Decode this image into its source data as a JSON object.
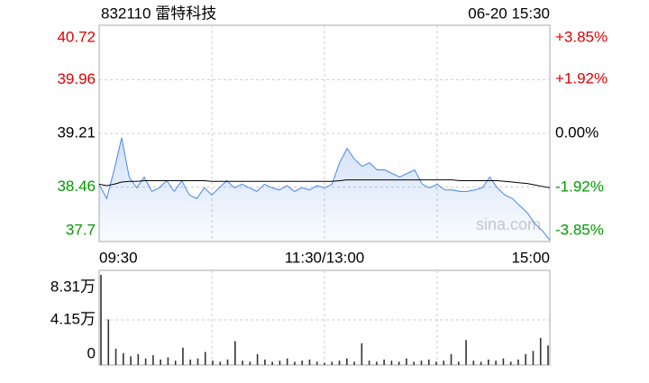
{
  "header": {
    "code_name": "832110 雷特科技",
    "datetime": "06-20 15:30"
  },
  "watermark": "sina.com",
  "chart_data": [
    {
      "type": "line",
      "up_color": "#e00000",
      "down_color": "#009900",
      "flat_color": "#000000",
      "grid": true,
      "categories": [
        "09:30",
        null,
        null,
        null,
        null,
        null,
        null,
        null,
        null,
        null,
        null,
        null,
        null,
        null,
        null,
        null,
        null,
        null,
        null,
        null,
        null,
        null,
        null,
        null,
        null,
        null,
        null,
        null,
        null,
        null,
        "11:30/13:00",
        null,
        null,
        null,
        null,
        null,
        null,
        null,
        null,
        null,
        null,
        null,
        null,
        null,
        null,
        null,
        null,
        null,
        null,
        null,
        null,
        null,
        null,
        null,
        null,
        null,
        null,
        null,
        null,
        null,
        "15:00"
      ],
      "series": [
        {
          "color": "#4a86e8",
          "fill": true,
          "values": [
            38.5,
            38.3,
            38.7,
            39.15,
            38.6,
            38.45,
            38.6,
            38.4,
            38.45,
            38.55,
            38.4,
            38.55,
            38.35,
            38.3,
            38.45,
            38.35,
            38.45,
            38.55,
            38.45,
            38.5,
            38.45,
            38.4,
            38.5,
            38.45,
            38.42,
            38.48,
            38.4,
            38.45,
            38.42,
            38.48,
            38.45,
            38.5,
            38.8,
            39.0,
            38.85,
            38.75,
            38.8,
            38.7,
            38.7,
            38.65,
            38.6,
            38.65,
            38.7,
            38.5,
            38.45,
            38.5,
            38.42,
            38.42,
            38.4,
            38.4,
            38.42,
            38.45,
            38.6,
            38.45,
            38.35,
            38.3,
            38.2,
            38.1,
            37.95,
            37.85,
            37.72
          ]
        },
        {
          "color": "#000000",
          "fill": false,
          "values": [
            38.5,
            38.48,
            38.5,
            38.53,
            38.54,
            38.54,
            38.55,
            38.55,
            38.55,
            38.55,
            38.55,
            38.55,
            38.55,
            38.55,
            38.55,
            38.54,
            38.54,
            38.54,
            38.54,
            38.54,
            38.54,
            38.54,
            38.54,
            38.54,
            38.54,
            38.54,
            38.54,
            38.54,
            38.54,
            38.54,
            38.54,
            38.54,
            38.55,
            38.56,
            38.56,
            38.56,
            38.56,
            38.56,
            38.56,
            38.56,
            38.56,
            38.56,
            38.56,
            38.56,
            38.56,
            38.56,
            38.56,
            38.56,
            38.55,
            38.55,
            38.55,
            38.55,
            38.55,
            38.55,
            38.54,
            38.53,
            38.52,
            38.51,
            38.49,
            38.47,
            38.45
          ]
        }
      ],
      "ylim": [
        37.7,
        40.72
      ],
      "yticks": [
        40.72,
        39.96,
        39.21,
        38.46,
        37.7
      ],
      "y2lim": [
        -3.85,
        3.85
      ],
      "y2ticks": [
        {
          "value": 3.85,
          "label": "+3.85%"
        },
        {
          "value": 1.92,
          "label": "+1.92%"
        },
        {
          "value": 0,
          "label": "0.00%"
        },
        {
          "value": -1.92,
          "label": "-1.92%"
        },
        {
          "value": -3.85,
          "label": "-3.85%"
        }
      ]
    },
    {
      "type": "bar",
      "color": "#333333",
      "values": [
        8.31,
        4.2,
        1.5,
        1.1,
        0.8,
        1.0,
        0.6,
        0.9,
        0.5,
        0.7,
        0.4,
        1.6,
        0.5,
        0.6,
        1.2,
        0.4,
        0.3,
        0.5,
        2.2,
        0.4,
        0.3,
        1.0,
        0.5,
        0.3,
        0.4,
        0.6,
        0.3,
        0.4,
        0.5,
        0.3,
        0.2,
        0.3,
        0.4,
        0.6,
        0.3,
        2.0,
        0.4,
        0.3,
        0.5,
        0.4,
        0.3,
        0.6,
        0.3,
        0.4,
        0.5,
        0.3,
        0.4,
        1.0,
        0.3,
        2.3,
        0.4,
        0.3,
        0.5,
        0.4,
        0.6,
        0.3,
        0.5,
        1.0,
        1.3,
        2.5,
        1.8
      ],
      "ylim": [
        0,
        8.31
      ],
      "yticks": [
        {
          "value": 8.31,
          "label": "8.31万"
        },
        {
          "value": 4.15,
          "label": "4.15万"
        },
        0
      ]
    }
  ]
}
